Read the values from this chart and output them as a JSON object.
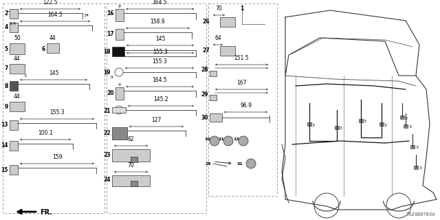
{
  "bg_color": "#ffffff",
  "text_color": "#000000",
  "line_color": "#444444",
  "diagram_code": "T6Z4B0703A",
  "fig_w": 6.4,
  "fig_h": 3.2,
  "dpi": 100
}
